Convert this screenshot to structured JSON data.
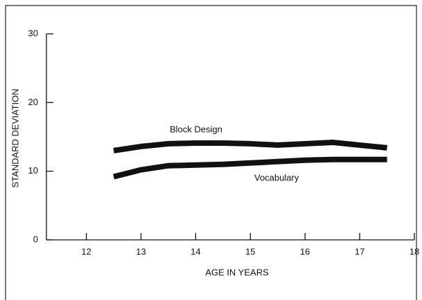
{
  "chart_data": {
    "type": "line",
    "x_label": "AGE IN YEARS",
    "y_label": "STANDARD DEVIATION",
    "x": [
      12.5,
      13,
      13.5,
      14,
      14.5,
      15,
      15.5,
      16,
      16.5,
      17,
      17.5
    ],
    "series": [
      {
        "name": "Block Design",
        "color": "#111111",
        "values": [
          13.0,
          13.6,
          14.0,
          14.1,
          14.1,
          14.0,
          13.8,
          14.0,
          14.2,
          13.8,
          13.4
        ]
      },
      {
        "name": "Vocabulary",
        "color": "#111111",
        "values": [
          9.2,
          10.2,
          10.8,
          10.9,
          11.0,
          11.2,
          11.4,
          11.6,
          11.7,
          11.7,
          11.7
        ]
      }
    ],
    "xlim": [
      11.27,
      18
    ],
    "xticks": [
      12,
      13,
      14,
      15,
      16,
      17,
      18
    ],
    "ylim": [
      0,
      30
    ],
    "yticks": [
      0,
      10,
      20,
      30
    ],
    "grid": false
  }
}
